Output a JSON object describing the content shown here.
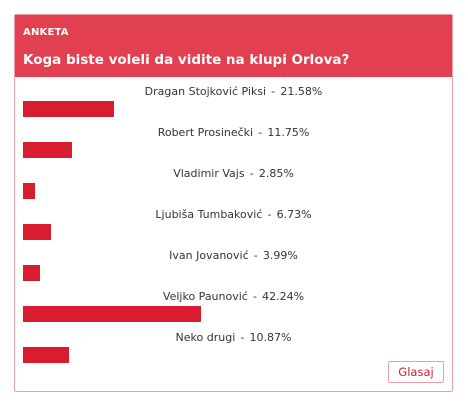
{
  "poll": {
    "kicker": "ANKETA",
    "question": "Koga biste voleli da vidite na klupi Orlova?",
    "accent_color": "#e23f50",
    "bar_color": "#d81e2e",
    "options": [
      {
        "name": "Dragan Stojković Piksi",
        "percent_text": "21.58%",
        "fraction": 0.2158
      },
      {
        "name": "Robert Prosinečki",
        "percent_text": "11.75%",
        "fraction": 0.1175
      },
      {
        "name": "Vladimir Vajs",
        "percent_text": "2.85%",
        "fraction": 0.0285
      },
      {
        "name": "Ljubiša Tumbaković",
        "percent_text": "6.73%",
        "fraction": 0.0673
      },
      {
        "name": "Ivan Jovanović",
        "percent_text": "3.99%",
        "fraction": 0.0399
      },
      {
        "name": "Veljko Paunović",
        "percent_text": "42.24%",
        "fraction": 0.4224
      },
      {
        "name": "Neko drugi",
        "percent_text": "10.87%",
        "fraction": 0.1087
      }
    ],
    "vote_label": "Glasaj"
  }
}
